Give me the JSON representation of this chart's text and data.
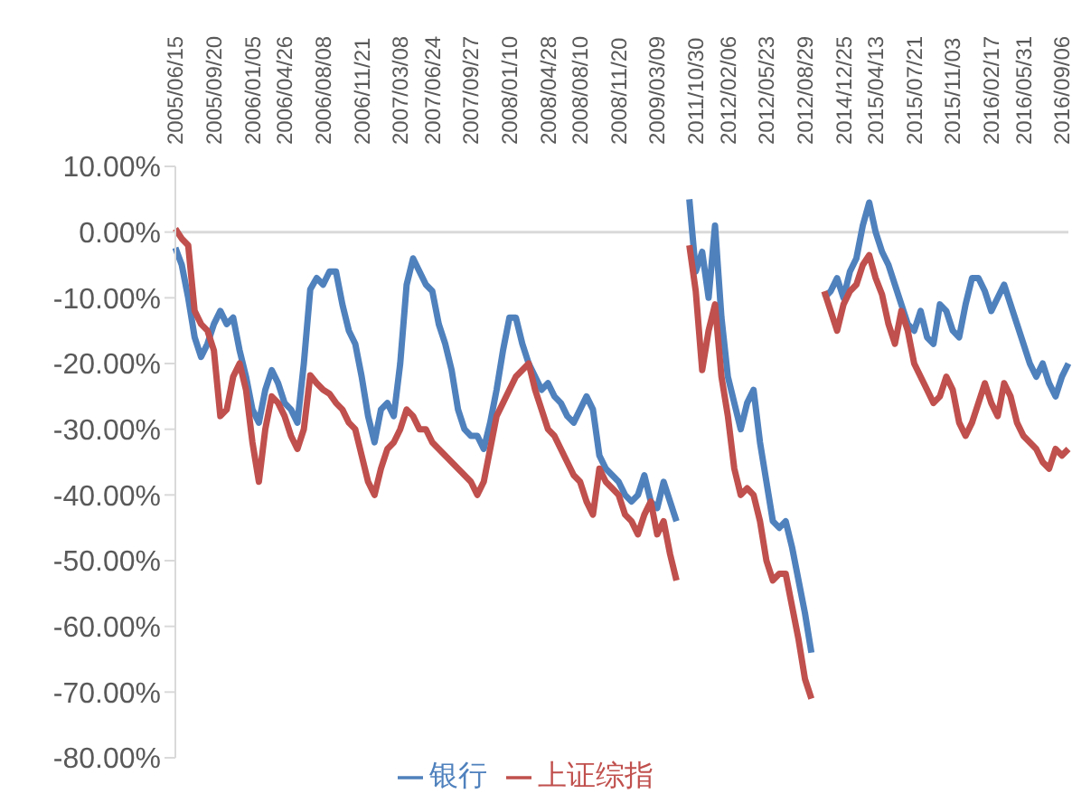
{
  "chart_data": {
    "type": "line",
    "categories": [
      "2005/06/15",
      null,
      null,
      null,
      null,
      null,
      "2005/09/20",
      null,
      null,
      null,
      null,
      null,
      "2006/01/05",
      null,
      null,
      null,
      null,
      "2006/04/26",
      null,
      null,
      null,
      null,
      null,
      "2006/08/08",
      null,
      null,
      null,
      null,
      null,
      "2006/11/21",
      null,
      null,
      null,
      null,
      null,
      "2007/03/08",
      null,
      null,
      null,
      null,
      "2007/06/24",
      null,
      null,
      null,
      null,
      null,
      "2007/09/27",
      null,
      null,
      null,
      null,
      null,
      "2008/01/10",
      null,
      null,
      null,
      null,
      null,
      "2008/04/28",
      null,
      null,
      null,
      null,
      "2008/08/10",
      null,
      null,
      null,
      null,
      null,
      "2008/11/20",
      null,
      null,
      null,
      null,
      null,
      "2009/03/09",
      null,
      null,
      null,
      null,
      null,
      "2011/10/30",
      null,
      null,
      null,
      null,
      "2012/02/06",
      null,
      null,
      null,
      null,
      null,
      "2012/05/23",
      null,
      null,
      null,
      null,
      null,
      "2012/08/29",
      null,
      null,
      null,
      null,
      null,
      "2014/12/25",
      null,
      null,
      null,
      null,
      "2015/04/13",
      null,
      null,
      null,
      null,
      null,
      "2015/07/21",
      null,
      null,
      null,
      null,
      null,
      "2015/11/03",
      null,
      null,
      null,
      null,
      null,
      "2016/02/17",
      null,
      null,
      null,
      null,
      "2016/05/31",
      null,
      null,
      null,
      null,
      null,
      "2016/09/06",
      null
    ],
    "series": [
      {
        "name": "银行",
        "color": "#4f81bd",
        "values": [
          -2.4,
          -5,
          -10,
          -16,
          -19,
          -17,
          -14,
          -12,
          -14,
          -13,
          -18,
          -22,
          -27,
          -29,
          -24,
          -21,
          -23,
          -26,
          -27,
          -29,
          -20,
          -8.7,
          -7,
          -8,
          -6,
          -6,
          -11,
          -15,
          -17,
          -22,
          -28,
          -32,
          -27,
          -26,
          -28,
          -20,
          -8,
          -4,
          -6,
          -8,
          -9,
          -14,
          -17,
          -21,
          -27,
          -30,
          -31,
          -31,
          -33,
          -29,
          -24,
          -18,
          -13,
          -13,
          -17,
          -20,
          -22,
          -24,
          -23,
          -25,
          -26,
          -28,
          -29,
          -27,
          -25,
          -27,
          -34,
          -36,
          -37,
          -38,
          -40,
          -41,
          -40,
          -37,
          -41,
          -42,
          -38,
          -41,
          -44,
          null,
          5,
          -6,
          -3,
          -10,
          1,
          -13,
          -22,
          -26,
          -30,
          -26,
          -24,
          -32,
          -38,
          -44,
          -45,
          -44,
          -48,
          -53,
          -58,
          -64,
          null,
          -10,
          -9,
          -7,
          -10,
          -6,
          -4,
          1,
          4.5,
          0,
          -3,
          -5,
          -8,
          -11,
          -14,
          -15,
          -12,
          -16,
          -17,
          -11,
          -12,
          -15,
          -16,
          -11,
          -7,
          -7,
          -9,
          -12,
          -10,
          -8,
          -11,
          -14,
          -17,
          -20,
          -22,
          -20,
          -23,
          -25,
          -22,
          -20
        ]
      },
      {
        "name": "上证综指",
        "color": "#c0504d",
        "values": [
          0.5,
          -1,
          -2,
          -12,
          -14,
          -15,
          -18,
          -28,
          -27,
          -22,
          -20,
          -24,
          -32,
          -38,
          -30,
          -25,
          -26,
          -28,
          -31,
          -33,
          -30,
          -21.8,
          -23,
          -24,
          -24.6,
          -26,
          -27,
          -29,
          -30,
          -34,
          -38,
          -40,
          -36,
          -33,
          -32,
          -30,
          -27,
          -28,
          -30,
          -30,
          -32,
          -33,
          -34,
          -35,
          -36,
          -37,
          -38,
          -40,
          -38,
          -33,
          -28,
          -26,
          -24,
          -22,
          -21,
          -20,
          -24,
          -27,
          -30,
          -31,
          -33,
          -35,
          -37,
          -38,
          -41,
          -43,
          -36,
          -38,
          -39,
          -40,
          -43,
          -44,
          -46,
          -43,
          -41,
          -46,
          -44,
          -49,
          -53,
          null,
          -2,
          -9,
          -21,
          -15,
          -11,
          -22,
          -28,
          -36,
          -40,
          -39,
          -40,
          -44,
          -50,
          -53,
          -52,
          -52,
          -57,
          -62,
          -68,
          -71,
          null,
          -9,
          -12,
          -15,
          -11,
          -9,
          -8,
          -5,
          -3.5,
          -7,
          -9.5,
          -14,
          -17,
          -12,
          -15,
          -20,
          -22,
          -24,
          -26,
          -25,
          -22,
          -24,
          -29,
          -31,
          -29,
          -26,
          -23,
          -26,
          -28,
          -23,
          -25,
          -29,
          -31,
          -32,
          -33,
          -35,
          -36,
          -33,
          -34,
          -33
        ]
      }
    ],
    "ylim": [
      -80,
      10
    ],
    "yticks": [
      {
        "value": 10,
        "label": "10.00%"
      },
      {
        "value": 0,
        "label": "0.00%"
      },
      {
        "value": -10,
        "label": "-10.00%"
      },
      {
        "value": -20,
        "label": "-20.00%"
      },
      {
        "value": -30,
        "label": "-30.00%"
      },
      {
        "value": -40,
        "label": "-40.00%"
      },
      {
        "value": -50,
        "label": "-50.00%"
      },
      {
        "value": -60,
        "label": "-60.00%"
      },
      {
        "value": -70,
        "label": "-70.00%"
      },
      {
        "value": -80,
        "label": "-80.00%"
      }
    ],
    "ref_lines": [
      {
        "axis": "y",
        "value": 0,
        "color": "#d9d9d9"
      }
    ],
    "grid": false,
    "legend": "bottom",
    "marker": "none",
    "line_style": "solid"
  }
}
